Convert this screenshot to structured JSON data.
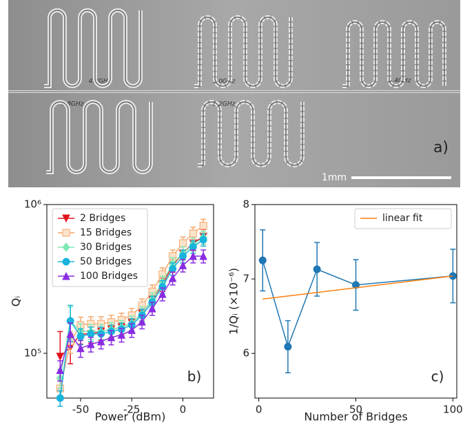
{
  "image": {
    "labels": [
      "4.8GHz",
      "5.0GHz",
      "5.4GHz",
      "4.8GHz",
      "5.2GHz"
    ],
    "panel_label": "a)",
    "scale_bar": "1mm"
  },
  "chart_data": [
    {
      "type": "line",
      "log_y": true,
      "x_label": "Power (dBm)",
      "y_label": "Qᵢ",
      "annotation": "b)",
      "legend": "upper left",
      "xlim": [
        -66.5,
        15
      ],
      "xticks": [
        -50,
        -25,
        0
      ],
      "ylim": [
        50000,
        1000000
      ],
      "yticks": [
        {
          "value": 100000,
          "label": "10⁵"
        },
        {
          "value": 1000000,
          "label": "10⁶"
        }
      ],
      "x": [
        -60,
        -55,
        -50,
        -45,
        -40,
        -35,
        -30,
        -25,
        -20,
        -15,
        -10,
        -5,
        0,
        5,
        10
      ],
      "series": [
        {
          "name": "2 Bridges",
          "color": "#e3121e",
          "marker": "v",
          "values": [
            95000,
            110000,
            135000,
            135000,
            140000,
            145000,
            150000,
            160000,
            185000,
            230000,
            290000,
            390000,
            470000,
            550000,
            610000
          ],
          "errors": [
            45000,
            25000,
            20000,
            18000,
            18000,
            18000,
            18000,
            18000,
            20000,
            25000,
            30000,
            40000,
            50000,
            60000,
            70000
          ]
        },
        {
          "name": "15 Bridges",
          "color": "#f5a76a",
          "marker": "s",
          "values": [
            58000,
            120000,
            155000,
            158000,
            158000,
            162000,
            168000,
            180000,
            210000,
            260000,
            340000,
            450000,
            550000,
            640000,
            720000
          ],
          "errors": [
            8000,
            20000,
            20000,
            18000,
            18000,
            18000,
            18000,
            20000,
            22000,
            28000,
            35000,
            45000,
            55000,
            65000,
            75000
          ]
        },
        {
          "name": "30 Bridges",
          "color": "#7ee8b4",
          "marker": "D",
          "values": [
            68000,
            165000,
            140000,
            140000,
            140000,
            145000,
            150000,
            160000,
            185000,
            230000,
            300000,
            400000,
            470000,
            540000,
            600000
          ],
          "errors": [
            10000,
            40000,
            18000,
            16000,
            16000,
            16000,
            16000,
            18000,
            20000,
            25000,
            30000,
            40000,
            50000,
            55000,
            60000
          ]
        },
        {
          "name": "50 Bridges",
          "color": "#18b4dc",
          "marker": "o",
          "values": [
            50000,
            165000,
            130000,
            135000,
            135000,
            140000,
            145000,
            155000,
            180000,
            220000,
            280000,
            370000,
            450000,
            520000,
            580000
          ],
          "errors": [
            6000,
            45000,
            16000,
            15000,
            15000,
            15000,
            15000,
            16000,
            18000,
            22000,
            28000,
            35000,
            45000,
            50000,
            55000
          ]
        },
        {
          "name": "100 Bridges",
          "color": "#8a2be2",
          "marker": "^",
          "values": [
            77000,
            135000,
            108000,
            115000,
            120000,
            128000,
            133000,
            143000,
            163000,
            200000,
            250000,
            320000,
            390000,
            450000,
            450000
          ],
          "errors": [
            12000,
            25000,
            14000,
            13000,
            13000,
            14000,
            14000,
            15000,
            17000,
            20000,
            25000,
            32000,
            38000,
            45000,
            45000
          ]
        }
      ]
    },
    {
      "type": "line",
      "x_label": "Number of Bridges",
      "y_label": "1/Qᵢ (×10⁻⁶)",
      "annotation": "c)",
      "legend": "upper right",
      "xlim": [
        -2,
        102
      ],
      "xticks": [
        0,
        50,
        100
      ],
      "ylim": [
        5.4,
        8
      ],
      "yticks": [
        6,
        7,
        8
      ],
      "series": [
        {
          "color": "#1f77b4",
          "marker": "o",
          "x": [
            2,
            15,
            30,
            50,
            100
          ],
          "values": [
            7.25,
            6.09,
            7.13,
            6.92,
            7.04
          ],
          "errors": [
            0.41,
            0.35,
            0.36,
            0.34,
            0.36
          ]
        },
        {
          "name": "linear fit",
          "color": "#ff7f0e",
          "x": [
            2,
            100
          ],
          "values": [
            6.73,
            7.04
          ]
        }
      ]
    }
  ]
}
